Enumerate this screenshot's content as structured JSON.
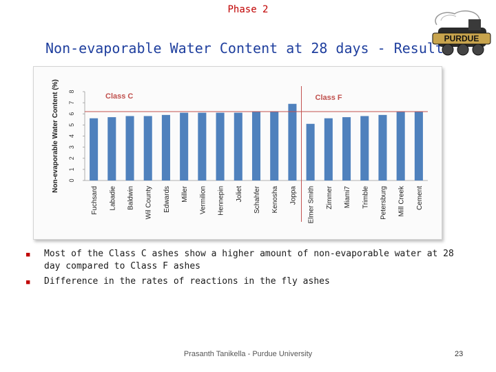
{
  "header": {
    "phase": "Phase 2",
    "title": "Non-evaporable Water Content at 28 days - Results",
    "logo_text": "PURDUE"
  },
  "chart_data": {
    "type": "bar",
    "ylabel": "Non-evaporable Water Content (%)",
    "ylim": [
      0,
      8
    ],
    "yticks": [
      0,
      1,
      2,
      3,
      4,
      5,
      6,
      7,
      8
    ],
    "grid": false,
    "bar_color": "#4f81bd",
    "divider_color": "#c0504d",
    "label_color": "#c0504d",
    "categories": [
      "Fuchsard",
      "Labadie",
      "Baldwin",
      "Wil County",
      "Edwards",
      "Miller",
      "Vermilion",
      "Hennepin",
      "Joliet",
      "Schahfer",
      "Kenosha",
      "Joppa",
      "Elmer Smith",
      "Zimmer",
      "Miami7",
      "Trimble",
      "Petersburg",
      "Mill Creek",
      "Cement"
    ],
    "values": [
      5.6,
      5.7,
      5.8,
      5.8,
      5.9,
      6.1,
      6.1,
      6.1,
      6.1,
      6.2,
      6.2,
      6.9,
      5.1,
      5.6,
      5.7,
      5.8,
      5.9,
      6.2,
      6.2
    ],
    "reference_line": 6.2,
    "class_c_label": "Class C",
    "class_f_label": "Class F",
    "class_boundary_after_index": 11
  },
  "bullets": [
    "Most of the Class C ashes show a higher amount of non-evaporable water at 28 day compared to Class F ashes",
    "Difference in the rates of reactions in the fly ashes"
  ],
  "footer": {
    "author": "Prasanth Tanikella - Purdue University",
    "page": "23"
  }
}
